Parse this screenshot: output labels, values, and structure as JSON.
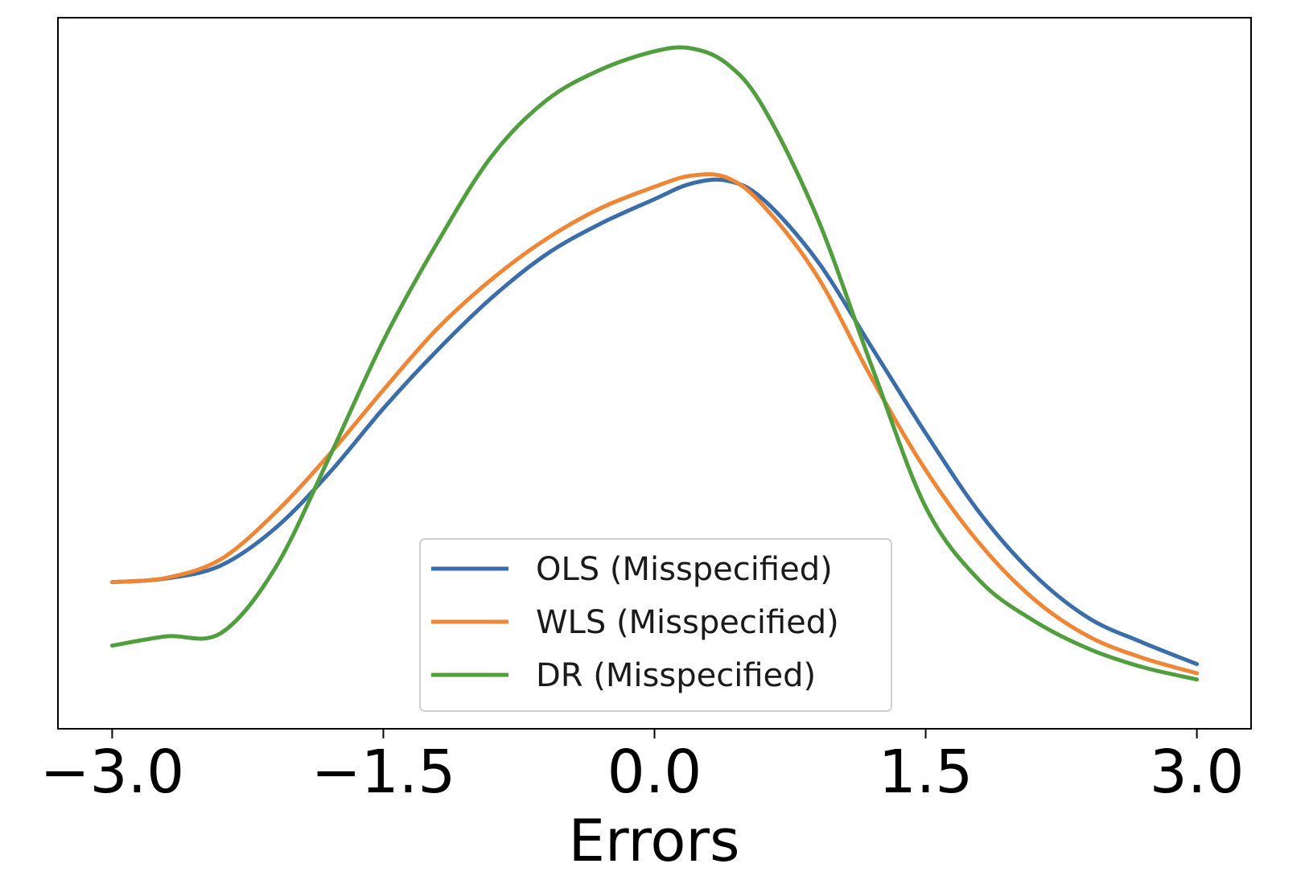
{
  "chart_data": {
    "type": "line",
    "title": "",
    "xlabel": "Errors",
    "ylabel": "",
    "xlim": [
      -3.3,
      3.3
    ],
    "ylim": [
      0,
      1
    ],
    "xticks": [
      -3.0,
      -1.5,
      0.0,
      1.5,
      3.0
    ],
    "xtick_labels": [
      "−3.0",
      "−1.5",
      "0.0",
      "1.5",
      "3.0"
    ],
    "yticks_visible": false,
    "grid": false,
    "legend_position": "lower-center",
    "x": [
      -3.0,
      -2.7,
      -2.4,
      -2.1,
      -1.8,
      -1.5,
      -1.2,
      -0.9,
      -0.6,
      -0.3,
      0.0,
      0.2,
      0.4,
      0.6,
      0.9,
      1.2,
      1.5,
      1.8,
      2.1,
      2.4,
      2.7,
      3.0
    ],
    "series": [
      {
        "name": "OLS (Misspecified)",
        "color": "#3b6ea8",
        "values": [
          0.178,
          0.184,
          0.205,
          0.265,
          0.355,
          0.46,
          0.555,
          0.64,
          0.71,
          0.76,
          0.8,
          0.825,
          0.83,
          0.8,
          0.7,
          0.56,
          0.42,
          0.29,
          0.19,
          0.12,
          0.08,
          0.045
        ]
      },
      {
        "name": "WLS (Misspecified)",
        "color": "#ef8636",
        "values": [
          0.178,
          0.185,
          0.215,
          0.29,
          0.385,
          0.49,
          0.59,
          0.67,
          0.735,
          0.785,
          0.82,
          0.838,
          0.835,
          0.79,
          0.675,
          0.51,
          0.36,
          0.24,
          0.15,
          0.09,
          0.055,
          0.03
        ]
      },
      {
        "name": "DR (Misspecified)",
        "color": "#519e3e",
        "values": [
          0.075,
          0.09,
          0.095,
          0.2,
          0.38,
          0.57,
          0.73,
          0.87,
          0.96,
          1.01,
          1.04,
          1.045,
          1.02,
          0.95,
          0.77,
          0.53,
          0.3,
          0.18,
          0.115,
          0.07,
          0.04,
          0.02
        ]
      }
    ]
  }
}
